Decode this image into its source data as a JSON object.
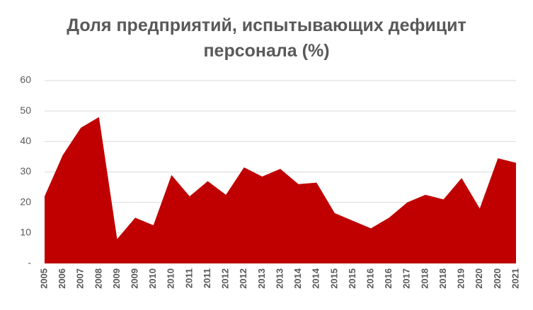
{
  "chart_data": {
    "type": "area",
    "title": "Доля предприятий, испытывающих дефицит персонала (%)",
    "categories": [
      "2005",
      "2006",
      "2007",
      "2008",
      "2009",
      "2009",
      "2010",
      "2010",
      "2011",
      "2011",
      "2012",
      "2012",
      "2013",
      "2013",
      "2014",
      "2014",
      "2015",
      "2015",
      "2016",
      "2016",
      "2017",
      "2018",
      "2018",
      "2019",
      "2020",
      "2020",
      "2021"
    ],
    "values": [
      22,
      35.5,
      44.5,
      48,
      8,
      15,
      12.5,
      29,
      22,
      27,
      22.5,
      31.5,
      28.5,
      31,
      26,
      26.5,
      16.5,
      14,
      11.5,
      15,
      20,
      22.5,
      21,
      28,
      18,
      34.5,
      33
    ],
    "color": "#c00000",
    "ylim": [
      0,
      60
    ],
    "yticks": [
      {
        "value": 0,
        "label": "-"
      },
      10,
      20,
      30,
      40,
      50,
      60
    ],
    "grid": true
  }
}
